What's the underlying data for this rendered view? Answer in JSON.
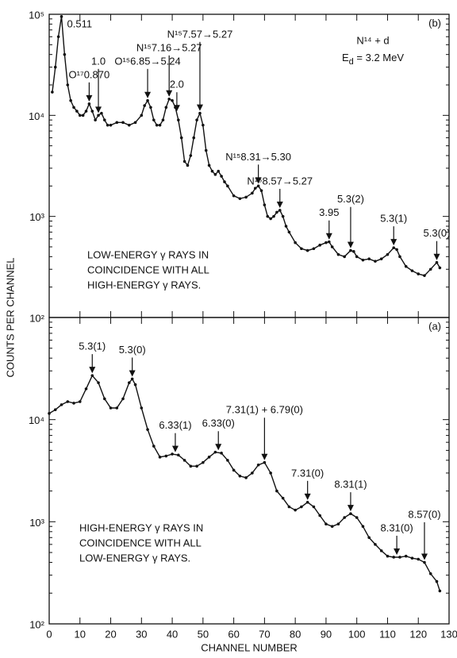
{
  "chart_data": [
    {
      "type": "line",
      "panel": "(b)",
      "ylabel": "COUNTS PER CHANNEL",
      "reaction": "N¹⁴ + d",
      "energy_symbol": "E",
      "energy_subscript": "d",
      "energy_value": " = 3.2 MeV",
      "note": [
        "LOW-ENERGY γ RAYS IN",
        "COINCIDENCE WITH ALL",
        "HIGH-ENERGY γ RAYS."
      ],
      "log_y": true,
      "color": "#111111",
      "xlim": [
        0,
        130
      ],
      "ylim": [
        100,
        100000
      ],
      "yticks": [
        {
          "value": 100000,
          "label": "10⁵"
        },
        {
          "value": 10000,
          "label": "10⁴"
        },
        {
          "value": 1000,
          "label": "10³"
        },
        {
          "value": 100,
          "label": "10²"
        }
      ],
      "x": [
        1,
        2,
        3,
        4,
        5,
        6,
        7,
        8,
        9,
        10,
        11,
        12,
        13,
        14,
        15,
        16,
        17,
        18,
        19,
        20,
        22,
        24,
        26,
        28,
        30,
        31,
        32,
        33,
        34,
        35,
        36,
        37,
        38,
        39,
        40,
        41,
        42,
        43,
        44,
        45,
        46,
        47,
        48,
        49,
        50,
        51,
        52,
        53,
        54,
        55,
        56,
        57,
        58,
        60,
        62,
        64,
        66,
        67,
        68,
        69,
        70,
        71,
        72,
        73,
        74,
        75,
        76,
        77,
        78,
        80,
        82,
        84,
        86,
        88,
        90,
        91,
        92,
        94,
        96,
        98,
        99,
        100,
        102,
        104,
        106,
        108,
        110,
        112,
        113,
        114,
        116,
        118,
        120,
        122,
        124,
        126,
        127
      ],
      "values": [
        17000,
        30000,
        60000,
        95000,
        40000,
        20000,
        14000,
        12000,
        11000,
        10000,
        10000,
        11000,
        13000,
        11000,
        9000,
        10000,
        10500,
        9000,
        8000,
        8000,
        8500,
        8500,
        8000,
        8500,
        10000,
        12500,
        14000,
        12000,
        9000,
        8000,
        8000,
        9000,
        12000,
        14500,
        14000,
        12000,
        9000,
        6000,
        3500,
        3200,
        4000,
        6000,
        9000,
        10500,
        8000,
        4500,
        3200,
        2800,
        2600,
        2800,
        2500,
        2200,
        2000,
        1600,
        1500,
        1550,
        1700,
        1900,
        2000,
        1800,
        1300,
        1000,
        950,
        1000,
        1100,
        1150,
        1000,
        800,
        700,
        550,
        480,
        460,
        480,
        520,
        550,
        560,
        500,
        420,
        400,
        460,
        450,
        400,
        370,
        380,
        360,
        380,
        420,
        490,
        470,
        400,
        320,
        290,
        270,
        260,
        300,
        350,
        310
      ],
      "annotations": [
        {
          "text": "0.511",
          "x": 4,
          "arrow": false
        },
        {
          "text": "O¹⁷0.870",
          "x": 13,
          "arrow": true
        },
        {
          "text": "1.0",
          "x": 16,
          "arrow": true
        },
        {
          "text": "O¹⁵6.85→5.24",
          "x": 32,
          "arrow": true
        },
        {
          "text": "N¹⁵7.16→5.27",
          "x": 39,
          "arrow": true
        },
        {
          "text": "2.0",
          "x": 41.5,
          "arrow": true
        },
        {
          "text": "N¹⁵7.57→5.27",
          "x": 49,
          "arrow": true
        },
        {
          "text": "N¹⁵8.31→5.30",
          "x": 68,
          "arrow": true
        },
        {
          "text": "N¹⁵8.57→5.27",
          "x": 75,
          "arrow": true
        },
        {
          "text": "3.95",
          "x": 91,
          "arrow": true
        },
        {
          "text": "5.3(2)",
          "x": 98,
          "arrow": true
        },
        {
          "text": "5.3(1)",
          "x": 112,
          "arrow": true
        },
        {
          "text": "5.3(0)",
          "x": 126,
          "arrow": true
        }
      ]
    },
    {
      "type": "line",
      "panel": "(a)",
      "xlabel": "CHANNEL NUMBER",
      "note": [
        "HIGH-ENERGY γ RAYS IN",
        "COINCIDENCE WITH ALL",
        "LOW-ENERGY γ RAYS."
      ],
      "log_y": true,
      "color": "#111111",
      "xlim": [
        0,
        130
      ],
      "ylim": [
        100,
        100000
      ],
      "xticks": [
        0,
        10,
        20,
        30,
        40,
        50,
        60,
        70,
        80,
        90,
        100,
        110,
        120,
        130
      ],
      "yticks": [
        {
          "value": 10000,
          "label": "10⁴"
        },
        {
          "value": 1000,
          "label": "10³"
        },
        {
          "value": 100,
          "label": "10²"
        }
      ],
      "x": [
        0,
        2,
        4,
        6,
        8,
        10,
        12,
        14,
        16,
        18,
        20,
        22,
        24,
        26,
        27,
        28,
        30,
        32,
        34,
        36,
        38,
        40,
        42,
        44,
        46,
        48,
        50,
        52,
        54,
        56,
        58,
        60,
        62,
        64,
        66,
        68,
        70,
        72,
        74,
        76,
        78,
        80,
        82,
        84,
        86,
        88,
        90,
        92,
        94,
        96,
        98,
        100,
        102,
        104,
        106,
        108,
        110,
        112,
        114,
        116,
        118,
        120,
        122,
        124,
        126,
        127
      ],
      "values": [
        11500,
        12500,
        14000,
        15000,
        14500,
        15000,
        20000,
        27000,
        23000,
        16000,
        13000,
        13000,
        16000,
        23000,
        25000,
        22000,
        13000,
        8000,
        5500,
        4300,
        4400,
        4600,
        4500,
        4000,
        3500,
        3500,
        3800,
        4300,
        4800,
        4700,
        4000,
        3200,
        2800,
        2700,
        3000,
        3600,
        3800,
        3000,
        2000,
        1700,
        1400,
        1300,
        1400,
        1550,
        1400,
        1150,
        950,
        900,
        950,
        1100,
        1200,
        1100,
        900,
        700,
        600,
        520,
        460,
        450,
        450,
        460,
        440,
        430,
        400,
        310,
        260,
        210
      ],
      "annotations": [
        {
          "text": "5.3(1)",
          "x": 14,
          "arrow": true
        },
        {
          "text": "5.3(0)",
          "x": 27,
          "arrow": true
        },
        {
          "text": "6.33(1)",
          "x": 41,
          "arrow": true
        },
        {
          "text": "6.33(0)",
          "x": 55,
          "arrow": true
        },
        {
          "text": "7.31(1) + 6.79(0)",
          "x": 70,
          "arrow": true
        },
        {
          "text": "7.31(0)",
          "x": 84,
          "arrow": true
        },
        {
          "text": "8.31(1)",
          "x": 98,
          "arrow": true
        },
        {
          "text": "8.31(0)",
          "x": 113,
          "arrow": true
        },
        {
          "text": "8.57(0)",
          "x": 122,
          "arrow": true
        }
      ]
    }
  ]
}
